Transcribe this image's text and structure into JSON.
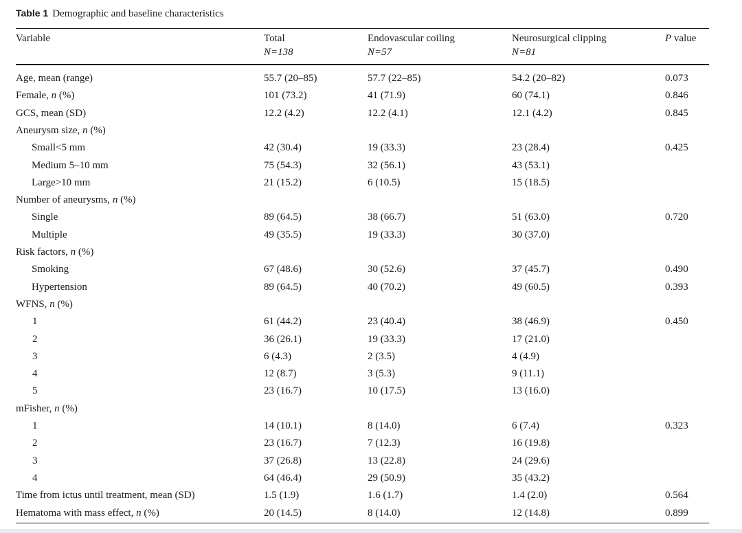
{
  "caption": {
    "label": "Table 1",
    "title": "Demographic and baseline characteristics"
  },
  "header": {
    "variable": "Variable",
    "total": "Total",
    "total_n": "N=138",
    "endo": "Endovascular coiling",
    "endo_n": "N=57",
    "neuro": "Neurosurgical clipping",
    "neuro_n": "N=81",
    "p_letter": "P",
    "p_word": " value"
  },
  "rows": [
    {
      "pre": "Age, mean (range)",
      "it": "",
      "post": "",
      "total": "55.7 (20–85)",
      "endo": "57.7 (22–85)",
      "neuro": "54.2 (20–82)",
      "p": "0.073",
      "indent": ""
    },
    {
      "pre": "Female, ",
      "it": "n",
      "post": " (%)",
      "total": "101 (73.2)",
      "endo": "41 (71.9)",
      "neuro": "60 (74.1)",
      "p": "0.846",
      "indent": ""
    },
    {
      "pre": "GCS, mean (SD)",
      "it": "",
      "post": "",
      "total": "12.2 (4.2)",
      "endo": "12.2 (4.1)",
      "neuro": "12.1 (4.2)",
      "p": "0.845",
      "indent": ""
    },
    {
      "pre": "Aneurysm size, ",
      "it": "n",
      "post": " (%)",
      "total": "",
      "endo": "",
      "neuro": "",
      "p": "",
      "indent": ""
    },
    {
      "pre": "Small<5 mm",
      "it": "",
      "post": "",
      "total": "42 (30.4)",
      "endo": "19 (33.3)",
      "neuro": "23 (28.4)",
      "p": "0.425",
      "indent": "indent"
    },
    {
      "pre": "Medium 5–10 mm",
      "it": "",
      "post": "",
      "total": "75 (54.3)",
      "endo": "32 (56.1)",
      "neuro": "43 (53.1)",
      "p": "",
      "indent": "indent"
    },
    {
      "pre": "Large>10 mm",
      "it": "",
      "post": "",
      "total": "21 (15.2)",
      "endo": "6 (10.5)",
      "neuro": "15 (18.5)",
      "p": "",
      "indent": "indent"
    },
    {
      "pre": "Number of aneurysms, ",
      "it": "n",
      "post": " (%)",
      "total": "",
      "endo": "",
      "neuro": "",
      "p": "",
      "indent": ""
    },
    {
      "pre": "Single",
      "it": "",
      "post": "",
      "total": "89 (64.5)",
      "endo": "38 (66.7)",
      "neuro": "51 (63.0)",
      "p": "0.720",
      "indent": "indent"
    },
    {
      "pre": "Multiple",
      "it": "",
      "post": "",
      "total": "49 (35.5)",
      "endo": "19 (33.3)",
      "neuro": "30 (37.0)",
      "p": "",
      "indent": "indent"
    },
    {
      "pre": "Risk factors, ",
      "it": "n",
      "post": " (%)",
      "total": "",
      "endo": "",
      "neuro": "",
      "p": "",
      "indent": ""
    },
    {
      "pre": "Smoking",
      "it": "",
      "post": "",
      "total": "67 (48.6)",
      "endo": "30 (52.6)",
      "neuro": "37 (45.7)",
      "p": "0.490",
      "indent": "indent"
    },
    {
      "pre": "Hypertension",
      "it": "",
      "post": "",
      "total": "89 (64.5)",
      "endo": "40 (70.2)",
      "neuro": "49 (60.5)",
      "p": "0.393",
      "indent": "indent"
    },
    {
      "pre": "WFNS, ",
      "it": "n",
      "post": " (%)",
      "total": "",
      "endo": "",
      "neuro": "",
      "p": "",
      "indent": ""
    },
    {
      "pre": "1",
      "it": "",
      "post": "",
      "total": "61 (44.2)",
      "endo": "23 (40.4)",
      "neuro": "38 (46.9)",
      "p": "0.450",
      "indent": "num"
    },
    {
      "pre": "2",
      "it": "",
      "post": "",
      "total": "36 (26.1)",
      "endo": "19 (33.3)",
      "neuro": "17 (21.0)",
      "p": "",
      "indent": "num"
    },
    {
      "pre": "3",
      "it": "",
      "post": "",
      "total": "6 (4.3)",
      "endo": "2 (3.5)",
      "neuro": "4 (4.9)",
      "p": "",
      "indent": "num"
    },
    {
      "pre": "4",
      "it": "",
      "post": "",
      "total": "12 (8.7)",
      "endo": "3 (5.3)",
      "neuro": "9 (11.1)",
      "p": "",
      "indent": "num"
    },
    {
      "pre": "5",
      "it": "",
      "post": "",
      "total": "23 (16.7)",
      "endo": "10 (17.5)",
      "neuro": "13 (16.0)",
      "p": "",
      "indent": "num"
    },
    {
      "pre": "mFisher, ",
      "it": "n",
      "post": " (%)",
      "total": "",
      "endo": "",
      "neuro": "",
      "p": "",
      "indent": ""
    },
    {
      "pre": "1",
      "it": "",
      "post": "",
      "total": "14 (10.1)",
      "endo": "8 (14.0)",
      "neuro": "6 (7.4)",
      "p": "0.323",
      "indent": "num"
    },
    {
      "pre": "2",
      "it": "",
      "post": "",
      "total": "23 (16.7)",
      "endo": "7 (12.3)",
      "neuro": "16 (19.8)",
      "p": "",
      "indent": "num"
    },
    {
      "pre": "3",
      "it": "",
      "post": "",
      "total": "37 (26.8)",
      "endo": "13 (22.8)",
      "neuro": "24 (29.6)",
      "p": "",
      "indent": "num"
    },
    {
      "pre": "4",
      "it": "",
      "post": "",
      "total": "64 (46.4)",
      "endo": "29 (50.9)",
      "neuro": "35 (43.2)",
      "p": "",
      "indent": "num"
    },
    {
      "pre": "Time from ictus until treatment, mean (SD)",
      "it": "",
      "post": "",
      "total": "1.5 (1.9)",
      "endo": "1.6 (1.7)",
      "neuro": "1.4 (2.0)",
      "p": "0.564",
      "indent": ""
    },
    {
      "pre": "Hematoma with mass effect, ",
      "it": "n",
      "post": " (%)",
      "total": "20 (14.5)",
      "endo": "8 (14.0)",
      "neuro": "12 (14.8)",
      "p": "0.899",
      "indent": ""
    }
  ]
}
